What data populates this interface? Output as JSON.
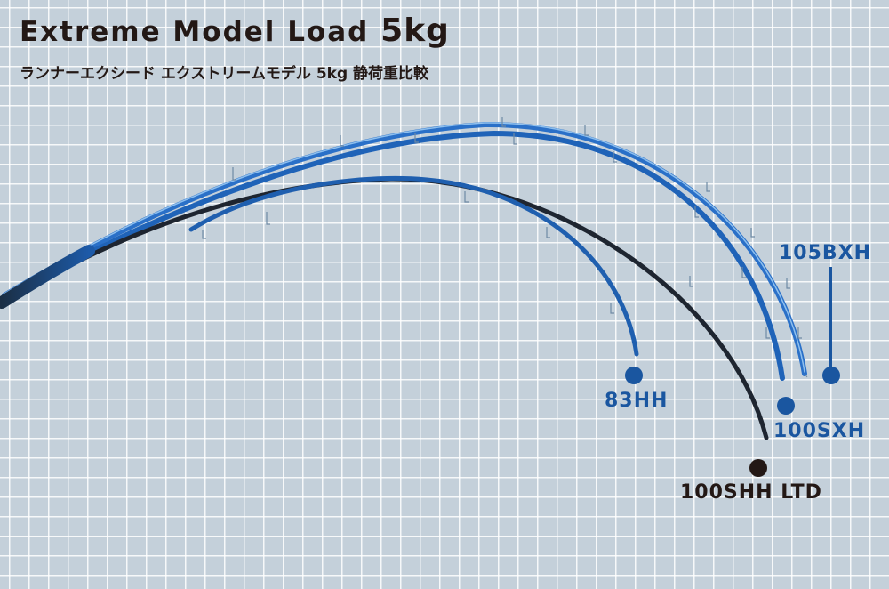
{
  "title": {
    "text": "Extreme Model Load ",
    "load_value": "5kg"
  },
  "subtitle": "ランナーエクシード エクストリームモデル 5kg 静荷重比較",
  "rods": [
    {
      "id": "105bxh",
      "label": "105BXH",
      "color": "#1a56a0"
    },
    {
      "id": "83hh",
      "label": "83HH",
      "color": "#1a56a0"
    },
    {
      "id": "100sxh",
      "label": "100SXH",
      "color": "#1a56a0"
    },
    {
      "id": "100shh-ltd",
      "label": "100SHH LTD",
      "color": "#231815"
    }
  ],
  "colors": {
    "background": "#c4d0da",
    "grid": "#ffffff",
    "blue": "#1a56a0",
    "black": "#231815"
  }
}
